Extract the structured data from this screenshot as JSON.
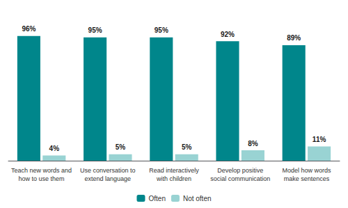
{
  "chart_data": {
    "type": "bar",
    "categories": [
      "Teach new words and\nhow to use them",
      "Use conversation to\nextend language",
      "Read interactively\nwith children",
      "Develop positive\nsocial communication",
      "Model how words\nmake sentences"
    ],
    "series": [
      {
        "name": "Often",
        "color": "#00868B",
        "values": [
          96,
          95,
          95,
          92,
          89
        ],
        "value_labels": [
          "96%",
          "95%",
          "95%",
          "92%",
          "89%"
        ]
      },
      {
        "name": "Not often",
        "color": "#99D3D3",
        "values": [
          4,
          5,
          5,
          8,
          11
        ],
        "value_labels": [
          "4%",
          "5%",
          "5%",
          "8%",
          "11%"
        ]
      }
    ],
    "ylim": [
      0,
      112
    ],
    "data_labels": true,
    "tick_labels": "x",
    "grid": false,
    "legend": "bottom"
  }
}
